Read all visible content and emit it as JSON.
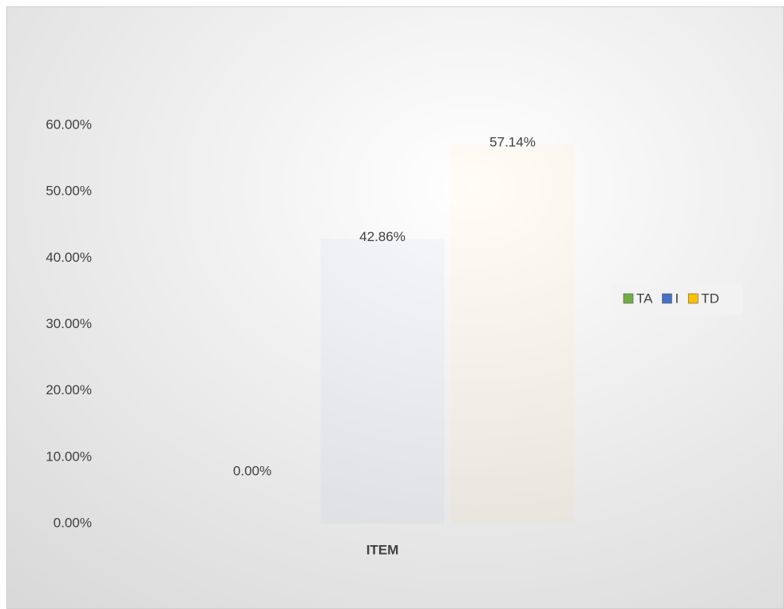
{
  "chart_data": {
    "type": "bar",
    "categories": [
      "ITEM"
    ],
    "x_label": "ITEM",
    "series": [
      {
        "name": "TA",
        "color": "#70ad47",
        "values": [
          0
        ],
        "value_labels": [
          "0.00%"
        ]
      },
      {
        "name": "I",
        "color": "#4472c4",
        "values": [
          42.86
        ],
        "value_labels": [
          "42.86%"
        ]
      },
      {
        "name": "TD",
        "color": "#ffc000",
        "values": [
          57.14
        ],
        "value_labels": [
          "57.14%"
        ]
      }
    ],
    "ylim": [
      0,
      60
    ],
    "yticks": [
      {
        "value": 0,
        "label": "0.00%"
      },
      {
        "value": 10,
        "label": "10.00%"
      },
      {
        "value": 20,
        "label": "20.00%"
      },
      {
        "value": 30,
        "label": "30.00%"
      },
      {
        "value": 40,
        "label": "40.00%"
      },
      {
        "value": 50,
        "label": "50.00%"
      },
      {
        "value": 60,
        "label": "60.00%"
      }
    ],
    "grid": false,
    "legend": "right"
  }
}
